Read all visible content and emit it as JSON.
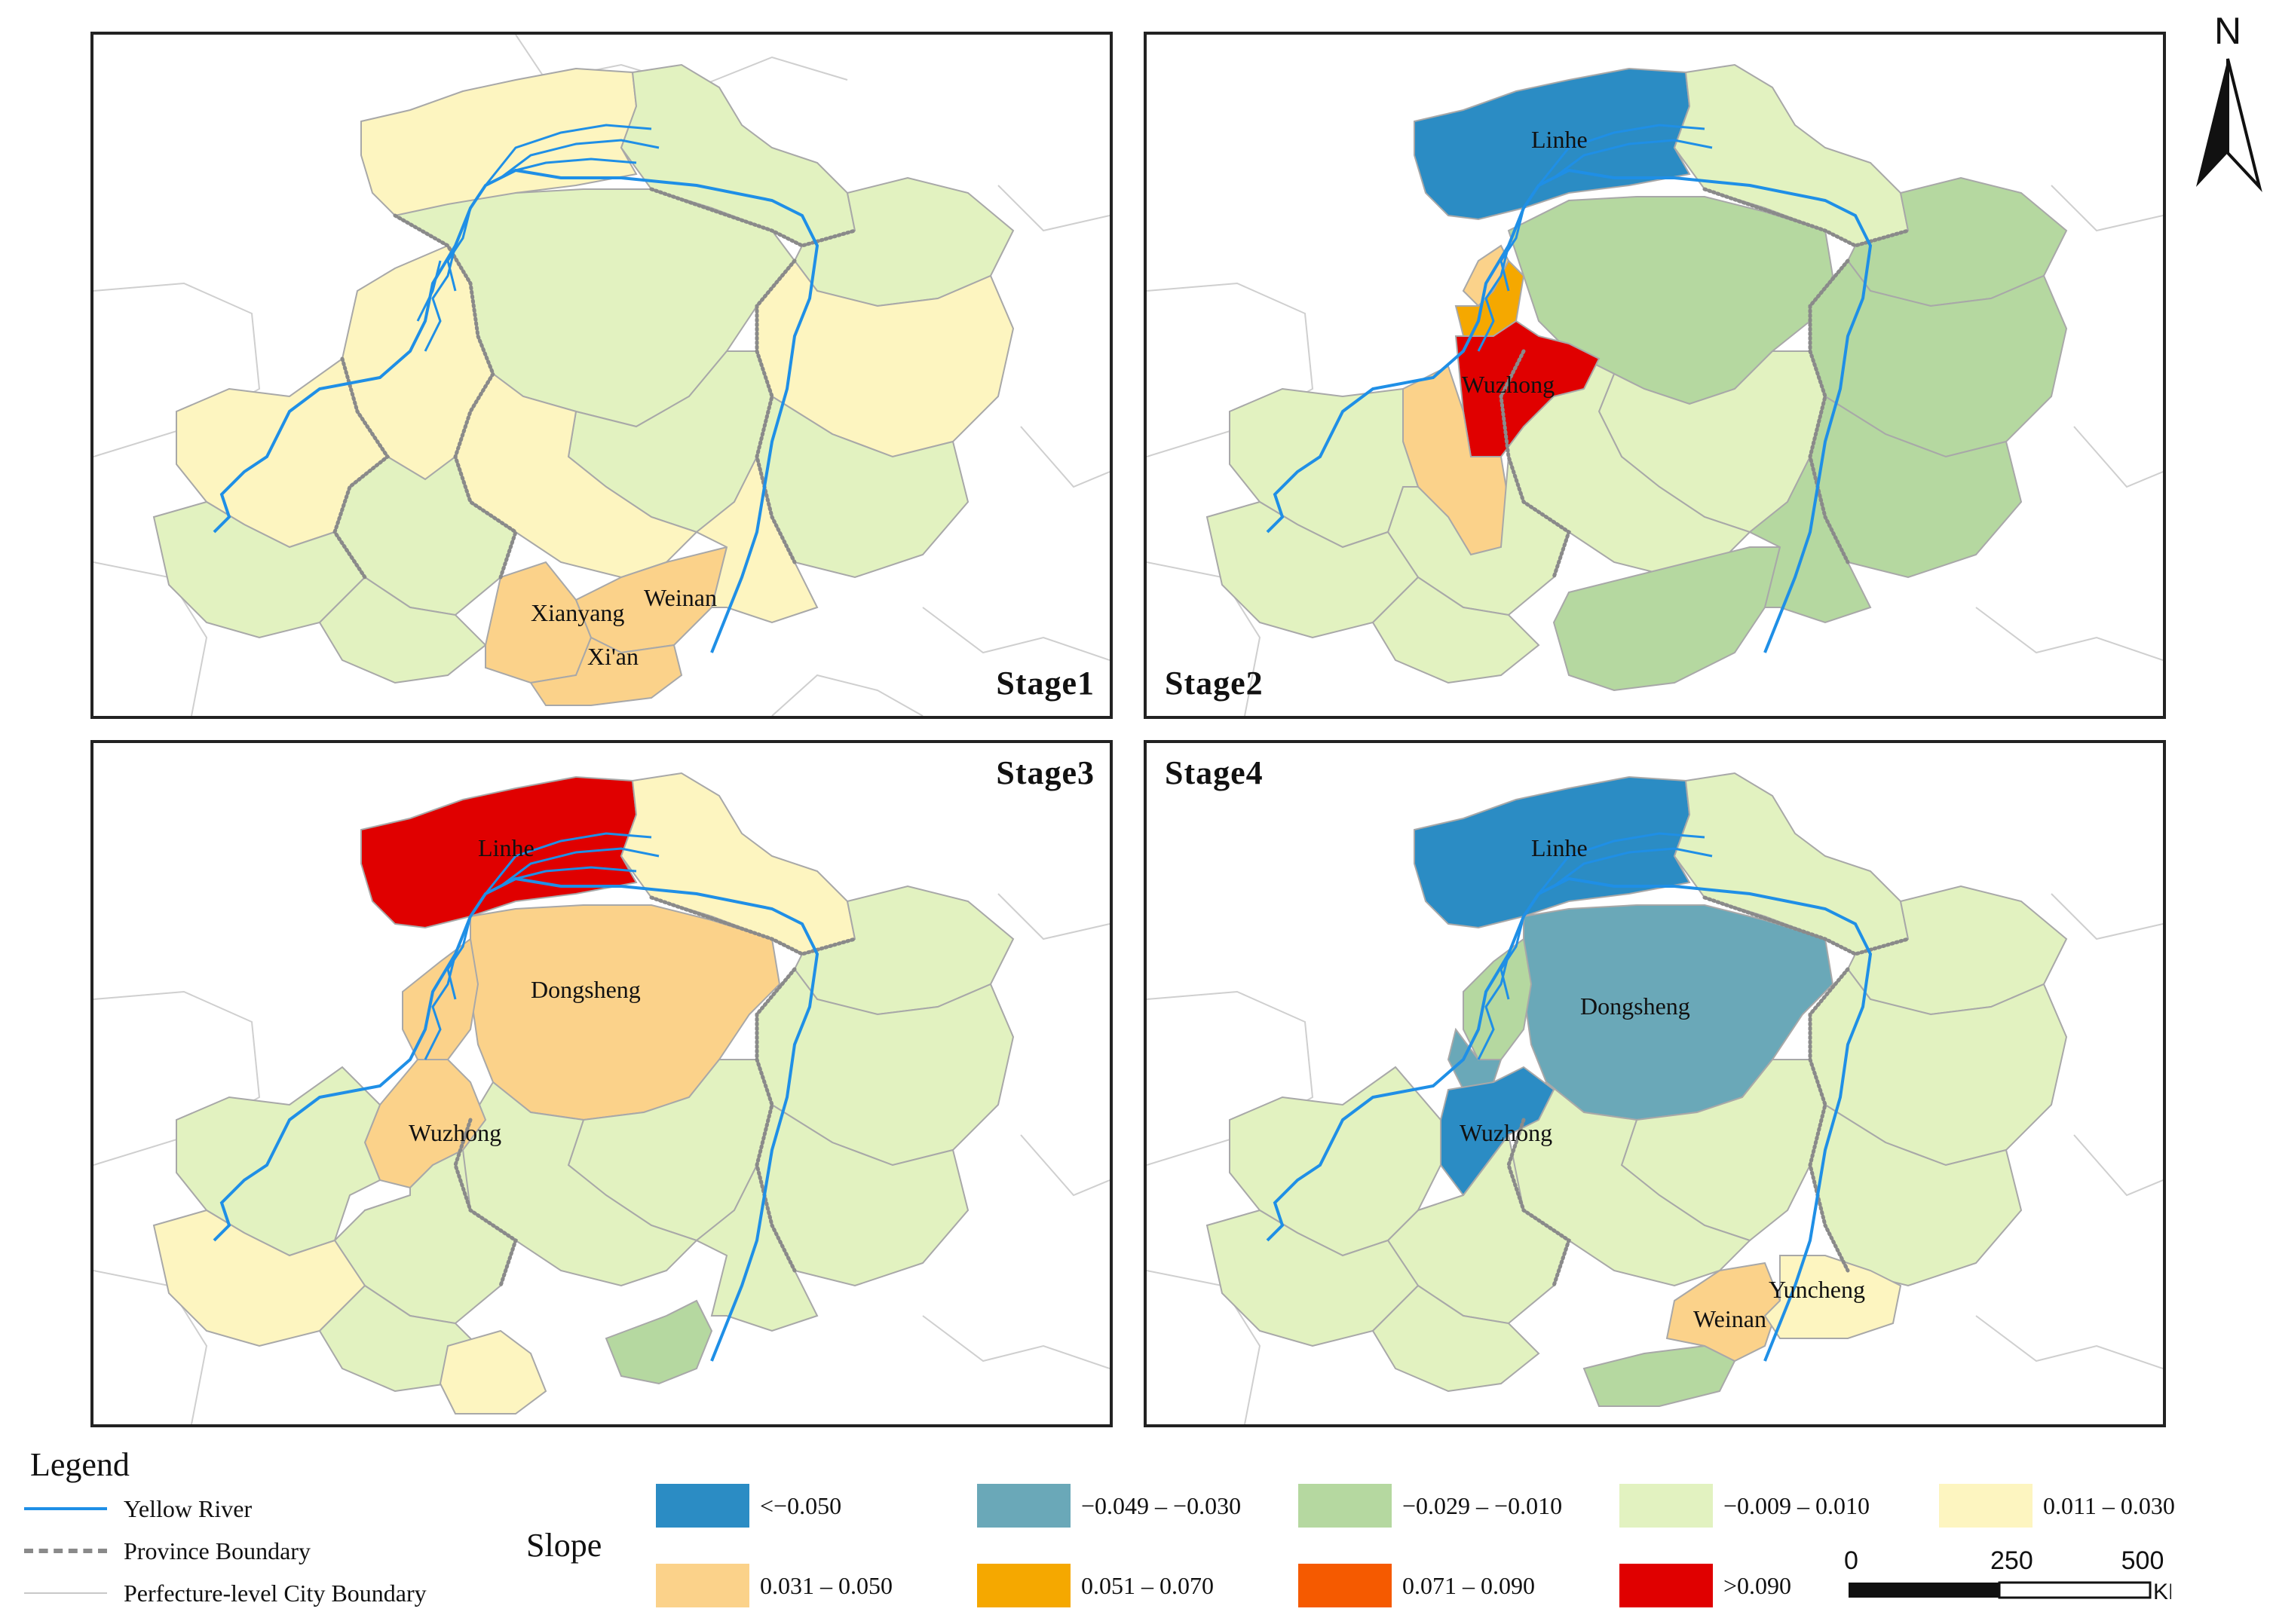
{
  "stages": [
    {
      "label": "Stage1",
      "cities": [
        "Xianyang",
        "Weinan",
        "Xi'an"
      ]
    },
    {
      "label": "Stage2",
      "cities": [
        "Linhe",
        "Wuzhong"
      ]
    },
    {
      "label": "Stage3",
      "cities": [
        "Linhe",
        "Dongsheng",
        "Wuzhong"
      ]
    },
    {
      "label": "Stage4",
      "cities": [
        "Linhe",
        "Dongsheng",
        "Wuzhong",
        "Yuncheng",
        "Weinan"
      ]
    }
  ],
  "legend": {
    "title": "Legend",
    "lines": [
      {
        "label": "Yellow River",
        "color": "#1f8fe6"
      },
      {
        "label": "Province Boundary",
        "color": "#8a8a8a"
      },
      {
        "label": "Perfecture-level City Boundary",
        "color": "#c8c8c8"
      }
    ],
    "slope_title": "Slope",
    "classes": [
      {
        "label": "<−0.050",
        "color": "#2b8cc4"
      },
      {
        "label": "−0.049 – −0.030",
        "color": "#6aa8b8"
      },
      {
        "label": "−0.029 – −0.010",
        "color": "#b5d8a0"
      },
      {
        "label": "−0.009 – 0.010",
        "color": "#e2f2c0"
      },
      {
        "label": "0.011 – 0.030",
        "color": "#fdf5c0"
      },
      {
        "label": "0.031 – 0.050",
        "color": "#fbd28a"
      },
      {
        "label": "0.051 – 0.070",
        "color": "#f5a800"
      },
      {
        "label": "0.071 – 0.090",
        "color": "#f55a00"
      },
      {
        "label": ">0.090",
        "color": "#e00000"
      }
    ]
  },
  "scale": {
    "ticks": [
      "0",
      "250",
      "500"
    ],
    "unit": "KM"
  },
  "north": {
    "label": "N"
  }
}
